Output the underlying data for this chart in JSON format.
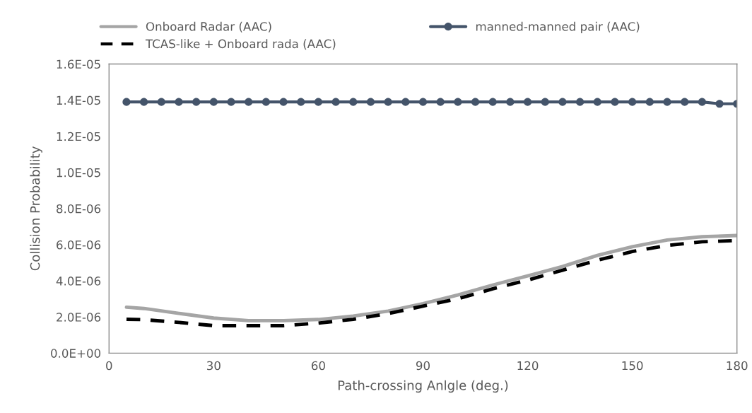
{
  "chart_data": {
    "type": "line",
    "xlabel": "Path-crossing Anlgle (deg.)",
    "ylabel": "Collision Probability",
    "xlim": [
      0,
      180
    ],
    "xticks": [
      0,
      30,
      60,
      90,
      120,
      150,
      180
    ],
    "ylim": [
      0,
      1.6e-05
    ],
    "yticks": [
      {
        "value": 0,
        "label": "0.0E+00"
      },
      {
        "value": 2e-06,
        "label": "2.0E-06"
      },
      {
        "value": 4e-06,
        "label": "4.0E-06"
      },
      {
        "value": 6e-06,
        "label": "6.0E-06"
      },
      {
        "value": 8e-06,
        "label": "8.0E-06"
      },
      {
        "value": 1e-05,
        "label": "1.0E-05"
      },
      {
        "value": 1.2e-05,
        "label": "1.2E-05"
      },
      {
        "value": 1.4e-05,
        "label": "1.4E-05"
      },
      {
        "value": 1.6e-05,
        "label": "1.6E-05"
      }
    ],
    "grid": false,
    "legend": "top",
    "series": [
      {
        "name": "Onboard Radar (AAC)",
        "color": "#a5a5a5",
        "line_style": "solid",
        "marker": "none",
        "x": [
          5,
          10,
          20,
          30,
          40,
          50,
          60,
          70,
          80,
          90,
          100,
          110,
          120,
          130,
          140,
          150,
          160,
          170,
          180
        ],
        "values": [
          2.54e-06,
          2.47e-06,
          2.2e-06,
          1.94e-06,
          1.8e-06,
          1.8e-06,
          1.86e-06,
          2.05e-06,
          2.33e-06,
          2.74e-06,
          3.22e-06,
          3.77e-06,
          4.27e-06,
          4.79e-06,
          5.41e-06,
          5.89e-06,
          6.26e-06,
          6.44e-06,
          6.51e-06
        ]
      },
      {
        "name": "TCAS-like + Onboard rada (AAC)",
        "color": "#000000",
        "line_style": "dashed",
        "marker": "none",
        "x": [
          5,
          10,
          20,
          30,
          40,
          50,
          60,
          70,
          80,
          90,
          100,
          110,
          120,
          130,
          140,
          150,
          160,
          170,
          180
        ],
        "values": [
          1.87e-06,
          1.85e-06,
          1.7e-06,
          1.52e-06,
          1.52e-06,
          1.52e-06,
          1.66e-06,
          1.87e-06,
          2.19e-06,
          2.6e-06,
          3.01e-06,
          3.56e-06,
          4.04e-06,
          4.59e-06,
          5.14e-06,
          5.62e-06,
          5.96e-06,
          6.16e-06,
          6.23e-06
        ]
      },
      {
        "name": "manned-manned pair (AAC)",
        "color": "#44546a",
        "line_style": "solid",
        "marker": "circle",
        "x": [
          5,
          10,
          15,
          20,
          25,
          30,
          35,
          40,
          45,
          50,
          55,
          60,
          65,
          70,
          75,
          80,
          85,
          90,
          95,
          100,
          105,
          110,
          115,
          120,
          125,
          130,
          135,
          140,
          145,
          150,
          155,
          160,
          165,
          170,
          175,
          180
        ],
        "values": [
          1.39e-05,
          1.39e-05,
          1.39e-05,
          1.39e-05,
          1.39e-05,
          1.39e-05,
          1.39e-05,
          1.39e-05,
          1.39e-05,
          1.39e-05,
          1.39e-05,
          1.39e-05,
          1.39e-05,
          1.39e-05,
          1.39e-05,
          1.39e-05,
          1.39e-05,
          1.39e-05,
          1.39e-05,
          1.39e-05,
          1.39e-05,
          1.39e-05,
          1.39e-05,
          1.39e-05,
          1.39e-05,
          1.39e-05,
          1.39e-05,
          1.39e-05,
          1.39e-05,
          1.39e-05,
          1.39e-05,
          1.39e-05,
          1.39e-05,
          1.39e-05,
          1.38e-05,
          1.38e-05
        ]
      }
    ]
  }
}
